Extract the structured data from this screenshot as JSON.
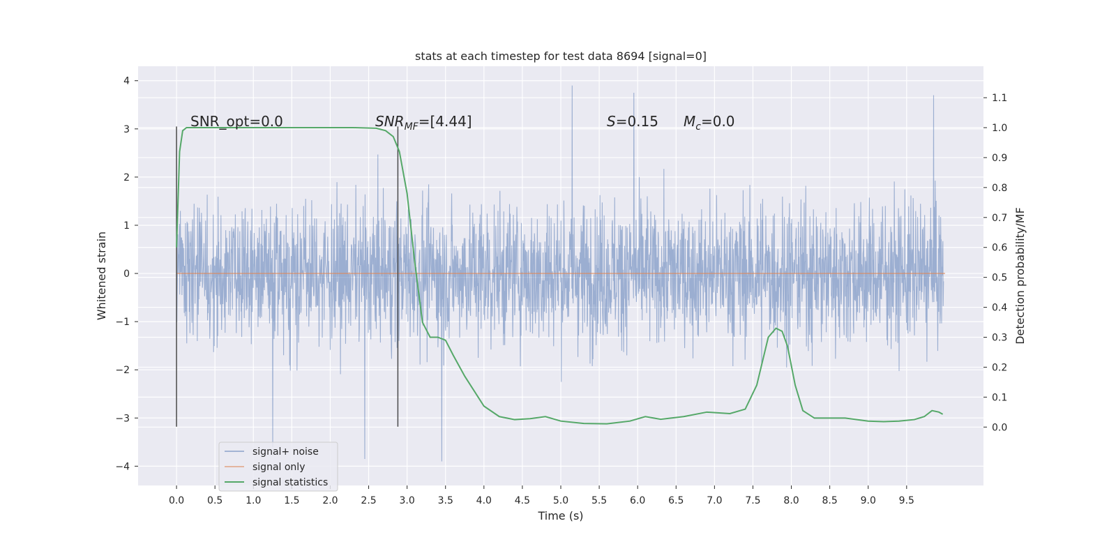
{
  "chart_data": {
    "type": "line",
    "title": "stats at each timestep for test data 8694 [signal=0]",
    "xlabel": "Time (s)",
    "ylabel": "Whitened strain",
    "ylabel_right": "Detection probability/MF",
    "xlim": [
      -0.5,
      10.5
    ],
    "ylim": [
      -4.4,
      4.3
    ],
    "ylim_right": [
      -0.195,
      1.205
    ],
    "x_ticks": [
      "0.0",
      "0.5",
      "1.0",
      "1.5",
      "2.0",
      "2.5",
      "3.0",
      "3.5",
      "4.0",
      "4.5",
      "5.0",
      "5.5",
      "6.0",
      "6.5",
      "7.0",
      "7.5",
      "8.0",
      "8.5",
      "9.0",
      "9.5"
    ],
    "y_ticks": [
      "−4",
      "−3",
      "−2",
      "−1",
      "0",
      "1",
      "2",
      "3",
      "4"
    ],
    "y_ticks_right": [
      "0.0",
      "0.1",
      "0.2",
      "0.3",
      "0.4",
      "0.5",
      "0.6",
      "0.7",
      "0.8",
      "0.9",
      "1.0",
      "1.1"
    ],
    "grid": true,
    "legend_position": "bottom-left",
    "colors": {
      "signal_noise": "#4c72b0",
      "signal_only": "#dd8452",
      "statistics": "#55a868",
      "markers": "#4a4a4a",
      "background": "#eaeaf2"
    },
    "annotations": {
      "snr_opt": "SNR_opt=0.0",
      "snr_mf_name": "SNR",
      "snr_mf_sub": "MF",
      "snr_mf_value": "=[4.44]",
      "s_name": "S",
      "s_value": "=0.15",
      "mc_name": "M",
      "mc_sub": "c",
      "mc_value": "=0.0"
    },
    "markers_x": [
      0.0,
      2.88
    ],
    "series": [
      {
        "name": "signal+ noise",
        "noise_envelope": {
          "x_range": [
            0.0,
            9.98
          ],
          "typical_abs": 1.2,
          "peak_abs": 3.9,
          "example_peaks": [
            [
              5.15,
              3.9
            ],
            [
              5.95,
              3.75
            ],
            [
              9.85,
              3.7
            ],
            [
              3.45,
              -3.9
            ],
            [
              2.45,
              -3.85
            ],
            [
              1.25,
              -3.6
            ]
          ]
        }
      },
      {
        "name": "signal only",
        "x": [
          0.0,
          10.0
        ],
        "values": [
          0.0,
          0.0
        ]
      },
      {
        "name": "signal statistics",
        "x": [
          0.0,
          0.04,
          0.08,
          0.13,
          0.2,
          0.3,
          0.5,
          1.0,
          1.5,
          2.0,
          2.3,
          2.6,
          2.72,
          2.82,
          2.9,
          3.0,
          3.1,
          3.2,
          3.3,
          3.4,
          3.5,
          3.6,
          3.75,
          4.0,
          4.2,
          4.4,
          4.6,
          4.8,
          5.0,
          5.3,
          5.6,
          5.9,
          6.1,
          6.3,
          6.6,
          6.9,
          7.2,
          7.4,
          7.55,
          7.7,
          7.8,
          7.88,
          7.95,
          8.05,
          8.15,
          8.3,
          8.5,
          8.7,
          9.0,
          9.2,
          9.4,
          9.6,
          9.73,
          9.83,
          9.92,
          9.97
        ],
        "values": [
          0.6,
          0.92,
          0.99,
          1.0,
          1.0,
          1.0,
          1.0,
          1.0,
          1.0,
          1.0,
          1.0,
          0.998,
          0.99,
          0.97,
          0.92,
          0.78,
          0.55,
          0.35,
          0.3,
          0.3,
          0.29,
          0.24,
          0.17,
          0.07,
          0.035,
          0.025,
          0.028,
          0.035,
          0.02,
          0.012,
          0.011,
          0.02,
          0.035,
          0.026,
          0.035,
          0.05,
          0.045,
          0.06,
          0.14,
          0.3,
          0.33,
          0.32,
          0.27,
          0.14,
          0.055,
          0.03,
          0.03,
          0.03,
          0.02,
          0.018,
          0.02,
          0.025,
          0.035,
          0.055,
          0.05,
          0.043
        ]
      }
    ]
  }
}
